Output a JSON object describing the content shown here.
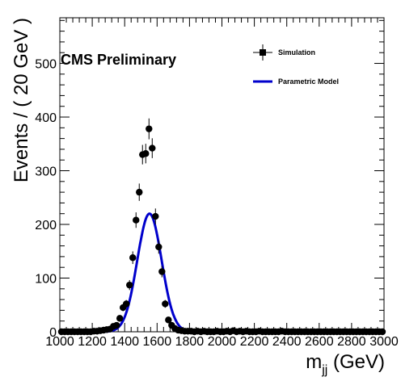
{
  "chart_data": {
    "type": "scatter",
    "annotation": "CMS Preliminary",
    "xlabel_main": "m",
    "xlabel_sub": "jj",
    "xlabel_unit": " (GeV)",
    "ylabel": "Events / ( 20 GeV )",
    "xlim": [
      1000,
      3000
    ],
    "ylim": [
      0,
      585
    ],
    "x_ticks": [
      1000,
      1200,
      1400,
      1600,
      1800,
      2000,
      2200,
      2400,
      2600,
      2800,
      3000
    ],
    "x_tick_labels": [
      "1000",
      "1200",
      "1400",
      "1600",
      "1800",
      "2000",
      "2200",
      "2400",
      "2600",
      "2800",
      "3000"
    ],
    "y_ticks": [
      0,
      100,
      200,
      300,
      400,
      500
    ],
    "y_tick_labels": [
      "0",
      "100",
      "200",
      "300",
      "400",
      "500"
    ],
    "legend": {
      "position": "top-right",
      "entries": [
        {
          "label": "Simulation",
          "kind": "marker"
        },
        {
          "label": "Parametric Model",
          "kind": "line"
        }
      ]
    },
    "colors": {
      "data": "#000000",
      "model": "#0000cc"
    },
    "series": [
      {
        "name": "Simulation",
        "kind": "points-with-errors",
        "x": [
          1010,
          1030,
          1050,
          1070,
          1090,
          1110,
          1130,
          1150,
          1170,
          1190,
          1210,
          1230,
          1250,
          1270,
          1290,
          1310,
          1330,
          1350,
          1370,
          1390,
          1410,
          1430,
          1450,
          1470,
          1490,
          1510,
          1530,
          1550,
          1570,
          1590,
          1610,
          1630,
          1650,
          1670,
          1690,
          1710,
          1730,
          1750,
          1770,
          1790,
          1810,
          1830,
          1850,
          1870,
          1890,
          1910,
          1930,
          1950,
          1970,
          1990,
          2010,
          2030,
          2050,
          2070,
          2090,
          2110,
          2130,
          2150,
          2170,
          2190,
          2210,
          2230,
          2250,
          2270,
          2290,
          2310,
          2330,
          2350,
          2370,
          2390,
          2410,
          2430,
          2450,
          2470,
          2490,
          2510,
          2530,
          2550,
          2570,
          2590,
          2610,
          2630,
          2650,
          2670,
          2690,
          2710,
          2730,
          2750,
          2770,
          2790,
          2810,
          2830,
          2850,
          2870,
          2890,
          2910,
          2930,
          2950,
          2970,
          2990
        ],
        "y": [
          0,
          0,
          0,
          0,
          0,
          0,
          0,
          0,
          0,
          0,
          1,
          1,
          2,
          3,
          4,
          5,
          10,
          12,
          25,
          45,
          52,
          87,
          138,
          208,
          260,
          330,
          332,
          378,
          342,
          215,
          158,
          112,
          52,
          22,
          12,
          6,
          3,
          2,
          1,
          1,
          1,
          0,
          1,
          0,
          1,
          0,
          0,
          0,
          1,
          0,
          0,
          1,
          0,
          2,
          0,
          1,
          0,
          1,
          0,
          0,
          0,
          1,
          0,
          0,
          0,
          0,
          0,
          0,
          1,
          0,
          0,
          0,
          0,
          0,
          0,
          0,
          0,
          0,
          0,
          0,
          0,
          0,
          0,
          0,
          0,
          0,
          0,
          0,
          0,
          0,
          0,
          0,
          0,
          0,
          0,
          0,
          0,
          0,
          0,
          0
        ]
      },
      {
        "name": "Parametric Model",
        "kind": "curve",
        "peak_x": 1553,
        "peak_y": 220,
        "sigma": 75
      }
    ]
  }
}
